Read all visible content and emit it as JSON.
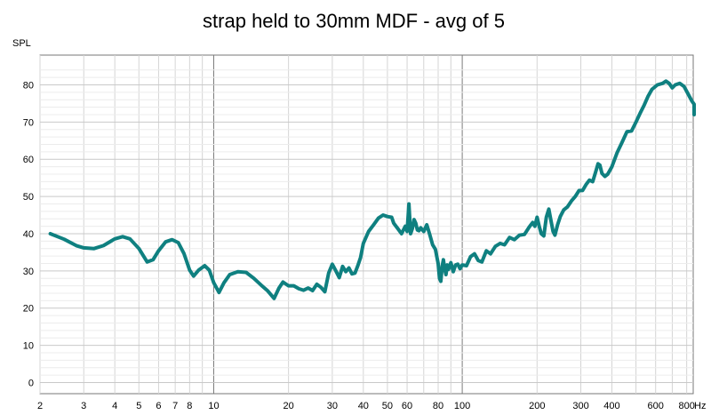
{
  "chart_data": {
    "type": "line",
    "title": "strap held to 30mm MDF - avg of 5",
    "xlabel": "Hz",
    "ylabel": "SPL",
    "x_scale": "log",
    "xlim": [
      2,
      850
    ],
    "ylim": [
      -3,
      88
    ],
    "grid": true,
    "x_ticks": [
      {
        "value": 2,
        "label": "2"
      },
      {
        "value": 3,
        "label": "3"
      },
      {
        "value": 4,
        "label": "4"
      },
      {
        "value": 5,
        "label": "5"
      },
      {
        "value": 6,
        "label": "6"
      },
      {
        "value": 7,
        "label": "7"
      },
      {
        "value": 8,
        "label": "8"
      },
      {
        "value": 10,
        "label": "10"
      },
      {
        "value": 20,
        "label": "20"
      },
      {
        "value": 30,
        "label": "30"
      },
      {
        "value": 40,
        "label": "40"
      },
      {
        "value": 50,
        "label": "50"
      },
      {
        "value": 60,
        "label": "60"
      },
      {
        "value": 80,
        "label": "80"
      },
      {
        "value": 100,
        "label": "100"
      },
      {
        "value": 200,
        "label": "200"
      },
      {
        "value": 300,
        "label": "300"
      },
      {
        "value": 400,
        "label": "400"
      },
      {
        "value": 600,
        "label": "600"
      },
      {
        "value": 800,
        "label": "800"
      }
    ],
    "y_ticks": [
      {
        "value": 0,
        "label": "0"
      },
      {
        "value": 10,
        "label": "10"
      },
      {
        "value": 20,
        "label": "20"
      },
      {
        "value": 30,
        "label": "30"
      },
      {
        "value": 40,
        "label": "40"
      },
      {
        "value": 50,
        "label": "50"
      },
      {
        "value": 60,
        "label": "60"
      },
      {
        "value": 70,
        "label": "70"
      },
      {
        "value": 80,
        "label": "80"
      }
    ],
    "series": [
      {
        "color": "#0f8080",
        "points": [
          [
            2.2,
            40.0
          ],
          [
            2.5,
            38.5
          ],
          [
            2.8,
            36.8
          ],
          [
            3.0,
            36.2
          ],
          [
            3.3,
            36.0
          ],
          [
            3.6,
            36.8
          ],
          [
            4.0,
            38.6
          ],
          [
            4.3,
            39.2
          ],
          [
            4.6,
            38.6
          ],
          [
            5.0,
            36.0
          ],
          [
            5.4,
            32.4
          ],
          [
            5.7,
            33.0
          ],
          [
            6.0,
            35.4
          ],
          [
            6.4,
            37.8
          ],
          [
            6.8,
            38.4
          ],
          [
            7.2,
            37.6
          ],
          [
            7.6,
            34.6
          ],
          [
            8.0,
            30.2
          ],
          [
            8.3,
            28.6
          ],
          [
            8.7,
            30.2
          ],
          [
            9.2,
            31.4
          ],
          [
            9.6,
            30.2
          ],
          [
            10.0,
            26.8
          ],
          [
            10.5,
            24.2
          ],
          [
            11.0,
            26.8
          ],
          [
            11.6,
            29.0
          ],
          [
            12.5,
            29.8
          ],
          [
            13.5,
            29.6
          ],
          [
            14.5,
            28.0
          ],
          [
            15.5,
            26.2
          ],
          [
            16.5,
            24.6
          ],
          [
            17.5,
            22.6
          ],
          [
            18.3,
            25.4
          ],
          [
            19.0,
            27.0
          ],
          [
            20.0,
            26.0
          ],
          [
            21.0,
            26.0
          ],
          [
            22.0,
            25.2
          ],
          [
            23.0,
            24.8
          ],
          [
            24.0,
            25.4
          ],
          [
            25.0,
            24.7
          ],
          [
            26.0,
            26.4
          ],
          [
            27.0,
            25.6
          ],
          [
            28.0,
            24.4
          ],
          [
            29.0,
            29.4
          ],
          [
            30.0,
            31.8
          ],
          [
            31.0,
            30.0
          ],
          [
            32.0,
            28.2
          ],
          [
            33.0,
            31.2
          ],
          [
            34.0,
            29.8
          ],
          [
            35.0,
            30.8
          ],
          [
            36.0,
            29.2
          ],
          [
            37.0,
            29.4
          ],
          [
            38.0,
            31.4
          ],
          [
            39.0,
            33.6
          ],
          [
            40.0,
            37.4
          ],
          [
            42.0,
            40.6
          ],
          [
            44.0,
            42.4
          ],
          [
            46.0,
            44.2
          ],
          [
            48.0,
            45.0
          ],
          [
            50.0,
            44.6
          ],
          [
            52.0,
            44.4
          ],
          [
            53.0,
            42.8
          ],
          [
            55.0,
            41.4
          ],
          [
            57.0,
            40.0
          ],
          [
            59.0,
            42.0
          ],
          [
            60.0,
            40.6
          ],
          [
            61.0,
            48.0
          ],
          [
            62.0,
            40.0
          ],
          [
            63.0,
            41.4
          ],
          [
            64.0,
            43.8
          ],
          [
            65.0,
            42.8
          ],
          [
            66.0,
            41.0
          ],
          [
            67.0,
            40.8
          ],
          [
            68.0,
            41.6
          ],
          [
            70.0,
            40.6
          ],
          [
            72.0,
            42.4
          ],
          [
            74.0,
            39.8
          ],
          [
            76.0,
            37.0
          ],
          [
            78.0,
            35.8
          ],
          [
            80.0,
            32.0
          ],
          [
            81.0,
            28.0
          ],
          [
            82.0,
            27.2
          ],
          [
            83.0,
            31.2
          ],
          [
            84.0,
            33.0
          ],
          [
            85.0,
            30.4
          ],
          [
            86.0,
            29.0
          ],
          [
            87.0,
            31.6
          ],
          [
            88.0,
            30.4
          ],
          [
            90.0,
            32.2
          ],
          [
            92.0,
            29.8
          ],
          [
            94.0,
            31.6
          ],
          [
            96.0,
            31.8
          ],
          [
            98.0,
            30.6
          ],
          [
            100.0,
            31.6
          ],
          [
            104.0,
            31.4
          ],
          [
            108.0,
            33.8
          ],
          [
            112.0,
            34.6
          ],
          [
            116.0,
            32.8
          ],
          [
            120.0,
            32.4
          ],
          [
            125.0,
            35.4
          ],
          [
            130.0,
            34.6
          ],
          [
            136.0,
            36.6
          ],
          [
            142.0,
            37.4
          ],
          [
            148.0,
            37.0
          ],
          [
            155.0,
            39.0
          ],
          [
            162.0,
            38.4
          ],
          [
            170.0,
            39.6
          ],
          [
            178.0,
            39.8
          ],
          [
            186.0,
            41.8
          ],
          [
            192.0,
            43.0
          ],
          [
            196.0,
            42.0
          ],
          [
            200.0,
            44.4
          ],
          [
            204.0,
            42.0
          ],
          [
            208.0,
            40.0
          ],
          [
            213.0,
            39.4
          ],
          [
            218.0,
            44.4
          ],
          [
            223.0,
            46.6
          ],
          [
            228.0,
            43.2
          ],
          [
            232.0,
            40.6
          ],
          [
            236.0,
            39.6
          ],
          [
            242.0,
            42.4
          ],
          [
            248.0,
            44.6
          ],
          [
            256.0,
            46.4
          ],
          [
            265.0,
            47.2
          ],
          [
            275.0,
            48.8
          ],
          [
            285.0,
            50.0
          ],
          [
            295.0,
            51.6
          ],
          [
            305.0,
            51.6
          ],
          [
            315.0,
            53.2
          ],
          [
            325.0,
            54.4
          ],
          [
            335.0,
            54.0
          ],
          [
            345.0,
            56.8
          ],
          [
            352.0,
            58.8
          ],
          [
            358.0,
            58.4
          ],
          [
            365.0,
            56.2
          ],
          [
            375.0,
            55.4
          ],
          [
            385.0,
            56.0
          ],
          [
            400.0,
            58.0
          ],
          [
            420.0,
            61.8
          ],
          [
            440.0,
            64.6
          ],
          [
            460.0,
            67.4
          ],
          [
            480.0,
            67.6
          ],
          [
            500.0,
            70.0
          ],
          [
            520.0,
            72.4
          ],
          [
            540.0,
            74.6
          ],
          [
            560.0,
            77.0
          ],
          [
            580.0,
            78.8
          ],
          [
            610.0,
            80.0
          ],
          [
            640.0,
            80.4
          ],
          [
            660.0,
            81.0
          ],
          [
            680.0,
            80.4
          ],
          [
            700.0,
            79.2
          ],
          [
            720.0,
            80.0
          ],
          [
            750.0,
            80.4
          ],
          [
            780.0,
            79.6
          ],
          [
            810.0,
            77.6
          ],
          [
            840.0,
            75.6
          ],
          [
            870.0,
            74.8
          ],
          [
            900.0,
            72.0
          ]
        ]
      }
    ]
  }
}
